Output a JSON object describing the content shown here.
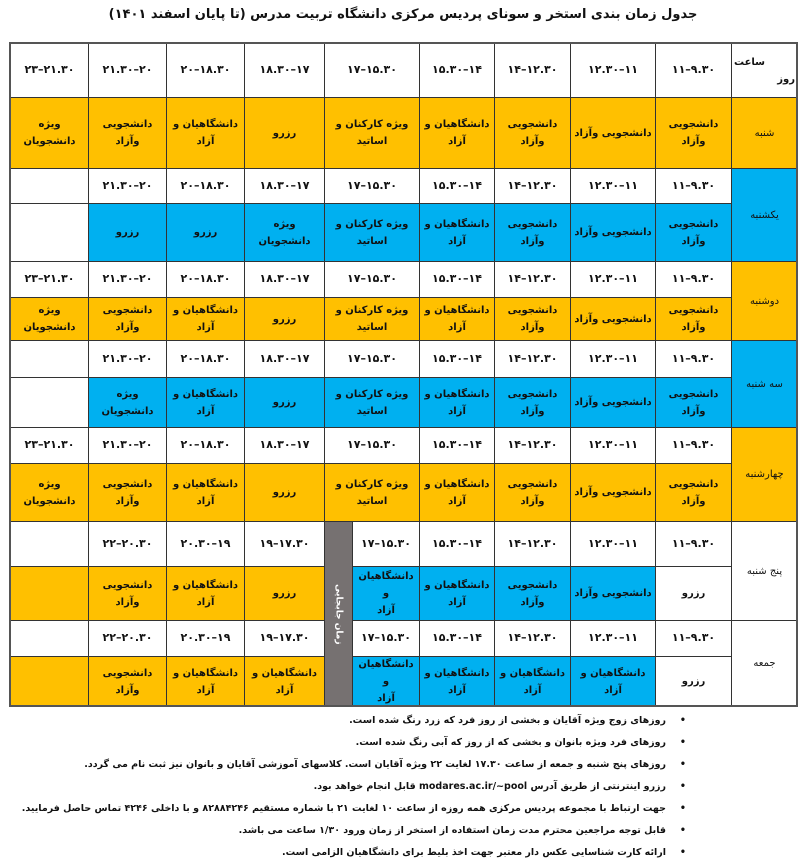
{
  "title": "جدول زمان بندی استخر و سونای پردیس مرکزی دانشگاه تربیت مدرس (تا پایان اسفند ۱۴۰۱)",
  "colors": {
    "Y": "#FFC000",
    "B": "#00B0F0",
    "W": "#FFFFFF",
    "gray": "#767171"
  },
  "header": {
    "corner_top": "ساعت",
    "corner_bottom": "روز",
    "times": [
      "۱۱–۹.۳۰",
      "۱۲.۳۰–۱۱",
      "۱۴–۱۲.۳۰",
      "۱۵.۳۰–۱۴",
      "۱۷–۱۵.۳۰",
      "۱۸.۳۰–۱۷",
      "۲۰–۱۸.۳۰",
      "۲۱.۳۰–۲۰",
      "۲۳–۲۱.۳۰"
    ]
  },
  "transition_label": "زمان جابجایی",
  "days": [
    {
      "name": "شنبه",
      "color": "Y",
      "times": [],
      "cells": [
        [
          "دانشجویی\nوآزاد",
          "Y"
        ],
        [
          "دانشجویی وآزاد",
          "Y"
        ],
        [
          "دانشجویی\nوآزاد",
          "Y"
        ],
        [
          "دانشگاهیان و\nآزاد",
          "Y"
        ],
        [
          "ویژه کارکنان و\nاساتید",
          "Y"
        ],
        [
          "رزرو",
          "Y"
        ],
        [
          "دانشگاهیان و\nآزاد",
          "Y"
        ],
        [
          "دانشجویی وآزاد",
          "Y"
        ],
        [
          "ویژه\nدانشجویان",
          "Y"
        ]
      ]
    },
    {
      "name": "یکشنبه",
      "color": "B",
      "times": [
        "۱۱–۹.۳۰",
        "۱۲.۳۰–۱۱",
        "۱۴–۱۲.۳۰",
        "۱۵.۳۰–۱۴",
        "۱۷–۱۵.۳۰",
        "۱۸.۳۰–۱۷",
        "۲۰–۱۸.۳۰",
        "۲۱.۳۰–۲۰",
        ""
      ],
      "cells": [
        [
          "دانشجویی\nوآزاد",
          "B"
        ],
        [
          "دانشجویی وآزاد",
          "B"
        ],
        [
          "دانشجویی\nوآزاد",
          "B"
        ],
        [
          "دانشگاهیان و\nآزاد",
          "B"
        ],
        [
          "ویژه کارکنان و\nاساتید",
          "B"
        ],
        [
          "ویژه\nدانشجویان",
          "B"
        ],
        [
          "رزرو",
          "B"
        ],
        [
          "رزرو",
          "B"
        ],
        [
          "",
          "W"
        ]
      ]
    },
    {
      "name": "دوشنبه",
      "color": "Y",
      "times": [
        "۱۱–۹.۳۰",
        "۱۲.۳۰–۱۱",
        "۱۴–۱۲.۳۰",
        "۱۵.۳۰–۱۴",
        "۱۷–۱۵.۳۰",
        "۱۸.۳۰–۱۷",
        "۲۰–۱۸.۳۰",
        "۲۱.۳۰–۲۰",
        "۲۳–۲۱.۳۰"
      ],
      "cells": [
        [
          "دانشجویی\nوآزاد",
          "Y"
        ],
        [
          "دانشجویی وآزاد",
          "Y"
        ],
        [
          "دانشجویی\nوآزاد",
          "Y"
        ],
        [
          "دانشگاهیان و\nآزاد",
          "Y"
        ],
        [
          "ویژه کارکنان و\nاساتید",
          "Y"
        ],
        [
          "رزرو",
          "Y"
        ],
        [
          "دانشگاهیان و\nآزاد",
          "Y"
        ],
        [
          "دانشجویی وآزاد",
          "Y"
        ],
        [
          "ویژه\nدانشجویان",
          "Y"
        ]
      ]
    },
    {
      "name": "سه شنبه",
      "color": "B",
      "times": [
        "۱۱–۹.۳۰",
        "۱۲.۳۰–۱۱",
        "۱۴–۱۲.۳۰",
        "۱۵.۳۰–۱۴",
        "۱۷–۱۵.۳۰",
        "۱۸.۳۰–۱۷",
        "۲۰–۱۸.۳۰",
        "۲۱.۳۰–۲۰",
        ""
      ],
      "cells": [
        [
          "دانشجویی\nوآزاد",
          "B"
        ],
        [
          "دانشجویی وآزاد",
          "B"
        ],
        [
          "دانشجویی\nوآزاد",
          "B"
        ],
        [
          "دانشگاهیان و\nآزاد",
          "B"
        ],
        [
          "ویژه کارکنان و\nاساتید",
          "B"
        ],
        [
          "رزرو",
          "B"
        ],
        [
          "دانشگاهیان و\nآزاد",
          "B"
        ],
        [
          "ویژه\nدانشجویان",
          "B"
        ],
        [
          "",
          "W"
        ]
      ]
    },
    {
      "name": "چهارشنبه",
      "color": "Y",
      "times": [
        "۱۱–۹.۳۰",
        "۱۲.۳۰–۱۱",
        "۱۴–۱۲.۳۰",
        "۱۵.۳۰–۱۴",
        "۱۷–۱۵.۳۰",
        "۱۸.۳۰–۱۷",
        "۲۰–۱۸.۳۰",
        "۲۱.۳۰–۲۰",
        "۲۳–۲۱.۳۰"
      ],
      "cells": [
        [
          "دانشجویی\nوآزاد",
          "Y"
        ],
        [
          "دانشجویی وآزاد",
          "Y"
        ],
        [
          "دانشجویی\nوآزاد",
          "Y"
        ],
        [
          "دانشگاهیان و\nآزاد",
          "Y"
        ],
        [
          "ویژه کارکنان و\nاساتید",
          "Y"
        ],
        [
          "رزرو",
          "Y"
        ],
        [
          "دانشگاهیان و\nآزاد",
          "Y"
        ],
        [
          "دانشجویی وآزاد",
          "Y"
        ],
        [
          "ویژه\nدانشجویان",
          "Y"
        ]
      ]
    },
    {
      "name": "پنج شنبه",
      "color": "W",
      "times": [
        "۱۱–۹.۳۰",
        "۱۲.۳۰–۱۱",
        "۱۴–۱۲.۳۰",
        "۱۵.۳۰–۱۴",
        "۱۷–۱۵.۳۰",
        "۱۹–۱۷.۳۰",
        "۲۰.۳۰–۱۹",
        "۲۲–۲۰.۳۰",
        ""
      ],
      "cells": [
        [
          "رزرو",
          "W"
        ],
        [
          "دانشجویی وآزاد",
          "B"
        ],
        [
          "دانشجویی\nوآزاد",
          "B"
        ],
        [
          "دانشگاهیان و\nآزاد",
          "B"
        ],
        [
          "دانشگاهیان و\nآزاد",
          "B"
        ],
        [
          "رزرو",
          "Y"
        ],
        [
          "دانشگاهیان و\nآزاد",
          "Y"
        ],
        [
          "دانشجویی وآزاد",
          "Y"
        ],
        [
          "",
          "Y"
        ]
      ]
    },
    {
      "name": "جمعه",
      "color": "W",
      "times": [
        "۱۱–۹.۳۰",
        "۱۲.۳۰–۱۱",
        "۱۴–۱۲.۳۰",
        "۱۵.۳۰–۱۴",
        "۱۷–۱۵.۳۰",
        "۱۹–۱۷.۳۰",
        "۲۰.۳۰–۱۹",
        "۲۲–۲۰.۳۰",
        ""
      ],
      "cells": [
        [
          "رزرو",
          "W"
        ],
        [
          "دانشگاهیان و آزاد",
          "B"
        ],
        [
          "دانشگاهیان و\nآزاد",
          "B"
        ],
        [
          "دانشگاهیان و\nآزاد",
          "B"
        ],
        [
          "دانشگاهیان و\nآزاد",
          "B"
        ],
        [
          "دانشگاهیان و\nآزاد",
          "Y"
        ],
        [
          "دانشگاهیان و\nآزاد",
          "Y"
        ],
        [
          "دانشجویی وآزاد",
          "Y"
        ],
        [
          "",
          "Y"
        ]
      ]
    }
  ],
  "notes": [
    "روزهای زوج ویژه آقایان و بخشی از روز فرد که زرد رنگ شده است.",
    "روزهای فرد ویژه بانوان و بخشی که  از روز که آبی رنگ شده است.",
    "روزهای پنج شنبه و  جمعه از ساعت  ۱۷.۳۰ لغایت ۲۲ ویژه آقایان است. کلاسهای آموزشی آقایان و بانوان نیز ثبت نام می گردد.",
    "رزرو اینترنتی از طریق آدرس  modares.ac.ir/~pool قابل انجام خواهد بود.",
    "جهت ارتباط با مجموعه پردیس مرکزی همه روزه از ساعت ۱۰  لغایت ۲۱ با شماره مستقیم ۸۲۸۸۴۲۴۶ و با داخلی ۴۲۴۶ تماس حاصل فرمایید.",
    "قابل توجه مراجعین محترم مدت زمان استفاده از استخر از زمان ورود ۱/۳۰ ساعت می باشد.",
    "ارائه کارت شناسایی عکس دار معتبر جهت اخذ بلیط برای دانشگاهیان الزامی است."
  ]
}
